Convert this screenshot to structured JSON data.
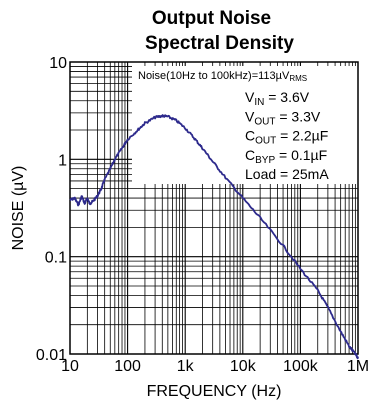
{
  "chart_data": {
    "type": "line",
    "title": [
      "Output Noise",
      "Spectral Density"
    ],
    "xlabel": "FREQUENCY (Hz)",
    "ylabel": "NOISE (µV)",
    "xscale": "log",
    "yscale": "log",
    "xlim": [
      10,
      1000000
    ],
    "ylim": [
      0.01,
      10
    ],
    "grid": true,
    "x_ticks": [
      {
        "value": 10,
        "label": "10"
      },
      {
        "value": 100,
        "label": "100"
      },
      {
        "value": 1000,
        "label": "1k"
      },
      {
        "value": 10000,
        "label": "10k"
      },
      {
        "value": 100000,
        "label": "100k"
      },
      {
        "value": 1000000,
        "label": "1M"
      }
    ],
    "y_ticks": [
      {
        "value": 10,
        "label": "10"
      },
      {
        "value": 1,
        "label": "1"
      },
      {
        "value": 0.1,
        "label": "0.1"
      },
      {
        "value": 0.01,
        "label": "0.01"
      }
    ],
    "series": [
      {
        "color": "#2d2a8c",
        "x": [
          10,
          12,
          14,
          16,
          18,
          20,
          22,
          25,
          30,
          35,
          40,
          50,
          60,
          80,
          100,
          150,
          200,
          300,
          400,
          500,
          700,
          1000,
          1500,
          2000,
          3000,
          5000,
          10000,
          20000,
          50000,
          100000,
          200000,
          300000,
          500000,
          700000,
          900000,
          1000000
        ],
        "values": [
          0.38,
          0.4,
          0.34,
          0.42,
          0.35,
          0.4,
          0.35,
          0.37,
          0.42,
          0.5,
          0.62,
          0.8,
          1.0,
          1.3,
          1.6,
          2.0,
          2.35,
          2.7,
          2.8,
          2.75,
          2.5,
          2.1,
          1.6,
          1.3,
          0.95,
          0.65,
          0.4,
          0.25,
          0.13,
          0.075,
          0.045,
          0.03,
          0.017,
          0.012,
          0.01,
          0.009
        ]
      }
    ],
    "annotation_box": {
      "header": {
        "pre": "Noise(10Hz to 100kHz)=113µV",
        "sub": "RMS"
      },
      "lines": [
        {
          "main": "V",
          "sub": "IN",
          "rest": " = 3.6V"
        },
        {
          "main": "V",
          "sub": "OUT",
          "rest": " = 3.3V"
        },
        {
          "main": "C",
          "sub": "OUT",
          "rest": " = 2.2µF"
        },
        {
          "main": "C",
          "sub": "BYP",
          "rest": " = 0.1µF"
        },
        {
          "main": "Load",
          "sub": "",
          "rest": " = 25mA"
        }
      ]
    }
  }
}
